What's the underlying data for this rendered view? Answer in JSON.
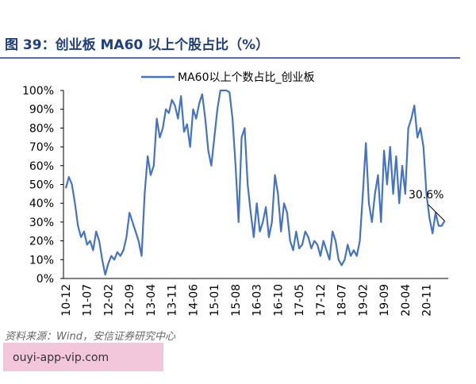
{
  "header": {
    "title": "图 39：创业板 MA60 以上个股占比（%）"
  },
  "chart_data": {
    "type": "line",
    "series": [
      {
        "name": "MA60以上个数占比_创业板",
        "color": "#4472c4",
        "values": [
          48,
          54,
          50,
          40,
          28,
          22,
          25,
          18,
          20,
          15,
          25,
          20,
          10,
          2,
          8,
          12,
          10,
          14,
          12,
          15,
          22,
          35,
          30,
          25,
          20,
          12,
          45,
          65,
          55,
          60,
          85,
          75,
          80,
          90,
          88,
          95,
          92,
          85,
          97,
          78,
          82,
          70,
          90,
          85,
          93,
          98,
          85,
          68,
          60,
          75,
          90,
          100,
          100,
          100,
          99,
          85,
          60,
          30,
          75,
          80,
          50,
          35,
          22,
          40,
          25,
          30,
          38,
          22,
          30,
          55,
          45,
          25,
          40,
          35,
          20,
          15,
          25,
          16,
          18,
          25,
          22,
          16,
          20,
          18,
          12,
          20,
          15,
          10,
          25,
          20,
          10,
          7,
          10,
          18,
          12,
          15,
          12,
          20,
          45,
          72,
          40,
          30,
          45,
          55,
          30,
          68,
          50,
          70,
          45,
          65,
          40,
          60,
          45,
          80,
          85,
          92,
          75,
          80,
          70,
          45,
          32,
          24,
          35,
          28,
          28,
          30.6
        ]
      }
    ],
    "categories": [
      "10-12",
      null,
      null,
      null,
      null,
      null,
      null,
      "11-07",
      null,
      null,
      null,
      null,
      null,
      null,
      "12-02",
      null,
      null,
      null,
      null,
      null,
      null,
      "12-09",
      null,
      null,
      null,
      null,
      null,
      null,
      "13-04",
      null,
      null,
      null,
      null,
      null,
      null,
      "13-11",
      null,
      null,
      null,
      null,
      null,
      null,
      "14-06",
      null,
      null,
      null,
      null,
      null,
      null,
      "15-01",
      null,
      null,
      null,
      null,
      null,
      null,
      "15-08",
      null,
      null,
      null,
      null,
      null,
      null,
      "16-03",
      null,
      null,
      null,
      null,
      null,
      null,
      "16-10",
      null,
      null,
      null,
      null,
      null,
      null,
      "17-05",
      null,
      null,
      null,
      null,
      null,
      null,
      "17-12",
      null,
      null,
      null,
      null,
      null,
      null,
      "18-07",
      null,
      null,
      null,
      null,
      null,
      null,
      "19-02",
      null,
      null,
      null,
      null,
      null,
      null,
      "19-09",
      null,
      null,
      null,
      null,
      null,
      null,
      "20-04",
      null,
      null,
      null,
      null,
      null,
      null,
      "20-11",
      null,
      null,
      null,
      null,
      null,
      null
    ],
    "ylim": [
      0,
      100
    ],
    "yticks": [
      {
        "value": 0,
        "label": "0%"
      },
      {
        "value": 10,
        "label": "10%"
      },
      {
        "value": 20,
        "label": "20%"
      },
      {
        "value": 30,
        "label": "30%"
      },
      {
        "value": 40,
        "label": "40%"
      },
      {
        "value": 50,
        "label": "50%"
      },
      {
        "value": 60,
        "label": "60%"
      },
      {
        "value": 70,
        "label": "70%"
      },
      {
        "value": 80,
        "label": "80%"
      },
      {
        "value": 90,
        "label": "90%"
      },
      {
        "value": 100,
        "label": "100%"
      }
    ],
    "annotation": {
      "value": 30.6,
      "label": "30.6%"
    },
    "grid": false
  },
  "footer": {
    "source": "资料来源：Wind，安信证券研究中心",
    "watermark": "ouyi-app-vip.com"
  }
}
